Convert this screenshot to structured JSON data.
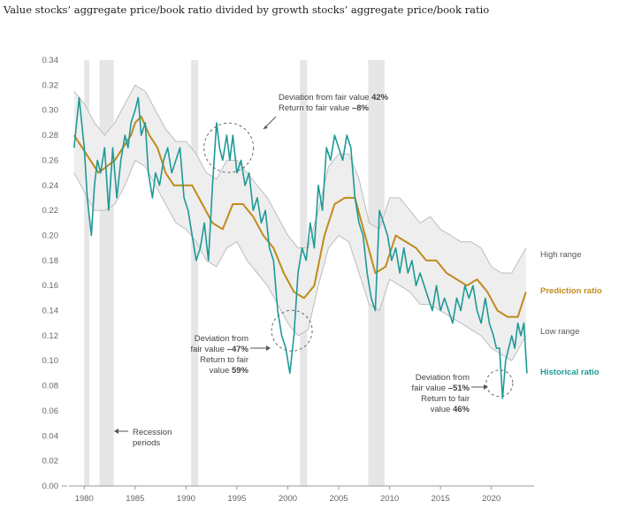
{
  "header": {
    "title": "Value stocks’ aggregate price/book ratio divided by growth stocks’ aggregate price/book ratio"
  },
  "colors": {
    "historical": "#1e9a96",
    "prediction": "#c08b1d",
    "range_band": "#eeeeee",
    "range_line": "#bdbdbd",
    "recession": "#e6e6e6"
  },
  "chart_data": {
    "type": "line",
    "title": "Value stocks’ aggregate price/book ratio divided by growth stocks’ aggregate price/book ratio",
    "xlabel": "",
    "ylabel": "",
    "xlim": [
      1978.5,
      2024.2
    ],
    "ylim": [
      0,
      0.34
    ],
    "x_ticks": [
      "1980",
      "1985",
      "1990",
      "1995",
      "2000",
      "2005",
      "2010",
      "2015",
      "2020"
    ],
    "y_ticks": [
      "0.00",
      "0.02",
      "0.04",
      "0.06",
      "0.08",
      "0.10",
      "0.12",
      "0.14",
      "0.16",
      "0.18",
      "0.20",
      "0.22",
      "0.24",
      "0.26",
      "0.28",
      "0.30",
      "0.32",
      "0.34"
    ],
    "recession_periods": [
      [
        1980.0,
        1980.5
      ],
      [
        1981.5,
        1982.9
      ],
      [
        1990.5,
        1991.2
      ],
      [
        2001.2,
        2001.9
      ],
      [
        2007.9,
        2009.5
      ]
    ],
    "series": [
      {
        "name": "Historical ratio",
        "x": [
          1979.0,
          1979.5,
          1980.0,
          1980.3,
          1980.7,
          1981.0,
          1981.3,
          1981.6,
          1982.0,
          1982.4,
          1982.8,
          1983.2,
          1983.6,
          1984.0,
          1984.3,
          1984.6,
          1985.0,
          1985.3,
          1985.6,
          1986.0,
          1986.3,
          1986.7,
          1987.0,
          1987.4,
          1987.8,
          1988.2,
          1988.6,
          1989.0,
          1989.4,
          1989.8,
          1990.2,
          1990.6,
          1991.0,
          1991.4,
          1991.8,
          1992.2,
          1992.6,
          1993.0,
          1993.3,
          1993.6,
          1994.0,
          1994.3,
          1994.6,
          1995.0,
          1995.4,
          1995.8,
          1996.2,
          1996.6,
          1997.0,
          1997.4,
          1997.8,
          1998.2,
          1998.6,
          1999.0,
          1999.4,
          1999.8,
          2000.2,
          2000.6,
          2001.0,
          2001.4,
          2001.8,
          2002.2,
          2002.6,
          2003.0,
          2003.4,
          2003.8,
          2004.2,
          2004.6,
          2005.0,
          2005.4,
          2005.8,
          2006.2,
          2006.6,
          2007.0,
          2007.4,
          2007.8,
          2008.2,
          2008.6,
          2009.0,
          2009.4,
          2009.8,
          2010.2,
          2010.6,
          2011.0,
          2011.4,
          2011.8,
          2012.2,
          2012.6,
          2013.0,
          2013.4,
          2013.8,
          2014.2,
          2014.6,
          2015.0,
          2015.4,
          2015.8,
          2016.2,
          2016.6,
          2017.0,
          2017.4,
          2017.8,
          2018.2,
          2018.6,
          2019.0,
          2019.4,
          2019.8,
          2020.2,
          2020.5,
          2020.8,
          2021.1,
          2021.4,
          2021.7,
          2022.0,
          2022.3,
          2022.6,
          2022.9,
          2023.2,
          2023.5
        ],
        "y": [
          0.27,
          0.31,
          0.27,
          0.23,
          0.2,
          0.24,
          0.26,
          0.25,
          0.27,
          0.22,
          0.27,
          0.23,
          0.26,
          0.28,
          0.27,
          0.29,
          0.3,
          0.31,
          0.28,
          0.29,
          0.25,
          0.23,
          0.25,
          0.24,
          0.26,
          0.27,
          0.25,
          0.26,
          0.27,
          0.23,
          0.22,
          0.2,
          0.18,
          0.19,
          0.21,
          0.18,
          0.24,
          0.29,
          0.27,
          0.26,
          0.28,
          0.26,
          0.28,
          0.25,
          0.26,
          0.24,
          0.25,
          0.22,
          0.23,
          0.21,
          0.22,
          0.19,
          0.18,
          0.14,
          0.12,
          0.11,
          0.09,
          0.12,
          0.17,
          0.19,
          0.18,
          0.21,
          0.19,
          0.24,
          0.22,
          0.27,
          0.26,
          0.28,
          0.27,
          0.26,
          0.28,
          0.27,
          0.23,
          0.21,
          0.2,
          0.17,
          0.15,
          0.14,
          0.22,
          0.21,
          0.2,
          0.18,
          0.19,
          0.17,
          0.19,
          0.17,
          0.18,
          0.16,
          0.17,
          0.16,
          0.15,
          0.14,
          0.16,
          0.14,
          0.15,
          0.14,
          0.13,
          0.15,
          0.14,
          0.16,
          0.15,
          0.16,
          0.14,
          0.13,
          0.15,
          0.13,
          0.12,
          0.11,
          0.11,
          0.07,
          0.1,
          0.11,
          0.12,
          0.11,
          0.13,
          0.12,
          0.13,
          0.09
        ]
      },
      {
        "name": "Prediction ratio",
        "x": [
          1979.0,
          1979.8,
          1980.6,
          1981.4,
          1982.2,
          1983.0,
          1983.8,
          1984.6,
          1985.0,
          1985.6,
          1986.4,
          1987.2,
          1988.0,
          1988.8,
          1989.6,
          1990.6,
          1991.6,
          1992.6,
          1993.6,
          1994.6,
          1995.6,
          1996.6,
          1997.6,
          1998.6,
          1999.6,
          2000.6,
          2001.6,
          2002.6,
          2003.6,
          2004.6,
          2005.6,
          2006.6,
          2007.6,
          2008.6,
          2009.6,
          2010.6,
          2011.6,
          2012.6,
          2013.6,
          2014.6,
          2015.6,
          2016.6,
          2017.6,
          2018.6,
          2019.6,
          2020.6,
          2021.6,
          2022.6,
          2023.4
        ],
        "y": [
          0.28,
          0.27,
          0.26,
          0.25,
          0.255,
          0.26,
          0.27,
          0.28,
          0.29,
          0.295,
          0.28,
          0.27,
          0.25,
          0.24,
          0.24,
          0.24,
          0.225,
          0.21,
          0.205,
          0.225,
          0.225,
          0.215,
          0.2,
          0.19,
          0.17,
          0.155,
          0.15,
          0.16,
          0.2,
          0.225,
          0.23,
          0.23,
          0.2,
          0.17,
          0.175,
          0.2,
          0.195,
          0.19,
          0.18,
          0.18,
          0.17,
          0.165,
          0.16,
          0.165,
          0.155,
          0.14,
          0.135,
          0.135,
          0.155
        ]
      },
      {
        "name": "High range",
        "x": [
          1979.0,
          1980.0,
          1981.0,
          1982.0,
          1983.0,
          1984.0,
          1985.0,
          1986.0,
          1987.0,
          1988.0,
          1989.0,
          1990.0,
          1991.0,
          1992.0,
          1993.0,
          1994.0,
          1995.0,
          1996.0,
          1997.0,
          1998.0,
          1999.0,
          2000.0,
          2001.0,
          2002.0,
          2003.0,
          2004.0,
          2005.0,
          2006.0,
          2007.0,
          2008.0,
          2009.0,
          2010.0,
          2011.0,
          2012.0,
          2013.0,
          2014.0,
          2015.0,
          2016.0,
          2017.0,
          2018.0,
          2019.0,
          2020.0,
          2021.0,
          2022.0,
          2023.4
        ],
        "y": [
          0.315,
          0.305,
          0.29,
          0.28,
          0.29,
          0.305,
          0.32,
          0.315,
          0.3,
          0.285,
          0.275,
          0.275,
          0.265,
          0.25,
          0.245,
          0.26,
          0.26,
          0.25,
          0.24,
          0.23,
          0.215,
          0.2,
          0.19,
          0.19,
          0.22,
          0.255,
          0.265,
          0.265,
          0.245,
          0.21,
          0.205,
          0.23,
          0.23,
          0.22,
          0.21,
          0.215,
          0.205,
          0.2,
          0.195,
          0.195,
          0.19,
          0.175,
          0.17,
          0.17,
          0.19
        ]
      },
      {
        "name": "Low range",
        "x": [
          1979.0,
          1980.0,
          1981.0,
          1982.0,
          1983.0,
          1984.0,
          1985.0,
          1986.0,
          1987.0,
          1988.0,
          1989.0,
          1990.0,
          1991.0,
          1992.0,
          1993.0,
          1994.0,
          1995.0,
          1996.0,
          1997.0,
          1998.0,
          1999.0,
          2000.0,
          2001.0,
          2002.0,
          2003.0,
          2004.0,
          2005.0,
          2006.0,
          2007.0,
          2008.0,
          2009.0,
          2010.0,
          2011.0,
          2012.0,
          2013.0,
          2014.0,
          2015.0,
          2016.0,
          2017.0,
          2018.0,
          2019.0,
          2020.0,
          2021.0,
          2022.0,
          2023.4
        ],
        "y": [
          0.25,
          0.235,
          0.22,
          0.22,
          0.225,
          0.24,
          0.26,
          0.255,
          0.24,
          0.225,
          0.21,
          0.205,
          0.195,
          0.18,
          0.175,
          0.19,
          0.195,
          0.18,
          0.17,
          0.16,
          0.145,
          0.13,
          0.12,
          0.125,
          0.16,
          0.19,
          0.2,
          0.195,
          0.17,
          0.145,
          0.14,
          0.165,
          0.16,
          0.155,
          0.145,
          0.145,
          0.14,
          0.135,
          0.13,
          0.125,
          0.12,
          0.11,
          0.105,
          0.1,
          0.12
        ]
      }
    ],
    "legend_placement": "right, at line ends",
    "grid": false,
    "annotations": [
      {
        "lines": [
          "Deviation from fair value 42%",
          "Return to fair value –8%"
        ],
        "bold": [
          "42%",
          "–8%"
        ]
      },
      {
        "lines": [
          "Deviation from",
          "fair value –47%",
          "Return to fair",
          "value 59%"
        ],
        "bold": [
          "–47%",
          "59%"
        ]
      },
      {
        "lines": [
          "Deviation from",
          "fair value –51%",
          "Return to fair",
          "value 46%"
        ],
        "bold": [
          "–51%",
          "46%"
        ]
      },
      {
        "lines": [
          "Recession",
          "periods"
        ],
        "bold": []
      }
    ]
  }
}
